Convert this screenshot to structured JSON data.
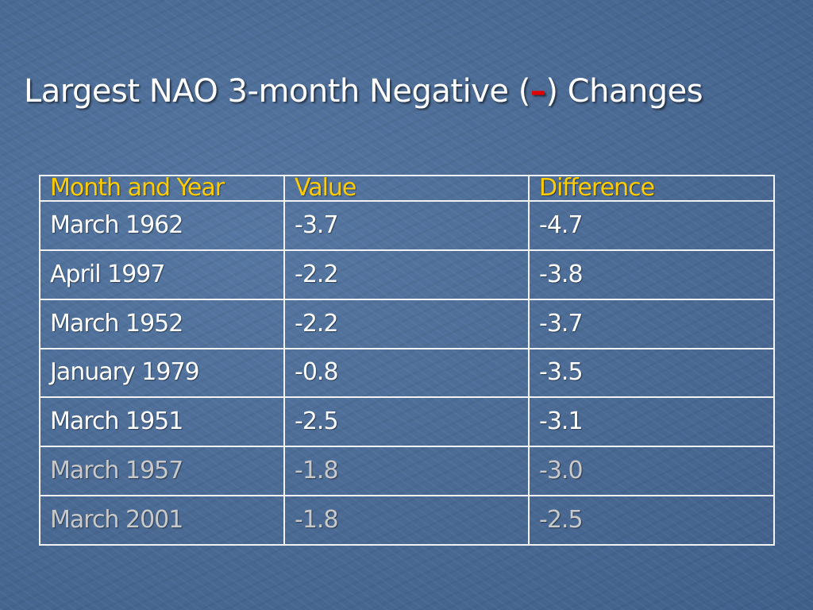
{
  "slide": {
    "title_before": "Largest NAO 3-month Negative (",
    "title_dash": "–",
    "title_after": ") Changes"
  },
  "colors": {
    "background": "#4a6a94",
    "header_text": "#ffcc00",
    "body_text": "#ffffff",
    "dimmed_text": "#c9c9c9",
    "title_dash": "#e00000",
    "grid_lines": "#f2f2f2"
  },
  "table": {
    "headers": [
      "Month and Year",
      "Value",
      "Difference"
    ],
    "rows": [
      [
        "March 1962",
        "-3.7",
        "-4.7"
      ],
      [
        "April 1997",
        "-2.2",
        "-3.8"
      ],
      [
        "March 1952",
        "-2.2",
        "-3.7"
      ],
      [
        "January 1979",
        "-0.8",
        "-3.5"
      ],
      [
        "March 1951",
        "-2.5",
        "-3.1"
      ],
      [
        "March 1957",
        "-1.8",
        "-3.0"
      ],
      [
        "March 2001",
        "-1.8",
        "-2.5"
      ]
    ],
    "dimmed_rows": [
      5,
      6
    ]
  }
}
